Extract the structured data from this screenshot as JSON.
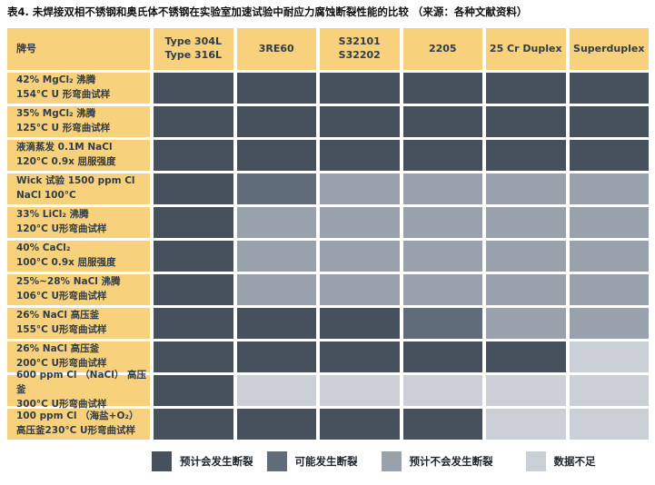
{
  "title": "表4. 未焊接双相不锈钢和奥氏体不锈钢在实验室加速试验中耐应力腐蚀断裂性能的比较 （来源：各种文献资料）",
  "colors": {
    "header_bg": "#F8D17C",
    "label_bg": "#F8D17C",
    "s1": "#47515E",
    "s2": "#606C7A",
    "s3": "#98A1AC",
    "s4": "#CBD0D7",
    "header_text": "#303C48",
    "title_text": "#111111"
  },
  "table": {
    "grade_header": "牌号",
    "columns": [
      "Type 304L\nType 316L",
      "3RE60",
      "S32101\nS32202",
      "2205",
      "25 Cr Duplex",
      "Superduplex"
    ],
    "rows": [
      {
        "label": "42% MgCl₂ 沸腾\n154°C U 形弯曲试样",
        "cells": [
          1,
          1,
          1,
          1,
          1,
          1
        ]
      },
      {
        "label": "35% MgCl₂ 沸腾\n125°C U 形弯曲试样",
        "cells": [
          1,
          1,
          1,
          1,
          1,
          1
        ]
      },
      {
        "label": "液滴蒸发  0.1M NaCl\n120°C 0.9x 屈服强度",
        "cells": [
          1,
          1,
          1,
          1,
          1,
          1
        ]
      },
      {
        "label": "Wick 试验 1500 ppm Cl\nNaCl 100°C",
        "cells": [
          1,
          2,
          3,
          3,
          3,
          3
        ]
      },
      {
        "label": "33% LiCl₂ 沸腾\n120°C U形弯曲试样",
        "cells": [
          1,
          3,
          3,
          3,
          3,
          3
        ]
      },
      {
        "label": "40% CaCl₂\n100°C 0.9x 屈服强度",
        "cells": [
          1,
          3,
          3,
          3,
          3,
          3
        ]
      },
      {
        "label": "25%~28% NaCl 沸腾\n106°C U形弯曲试样",
        "cells": [
          1,
          3,
          3,
          3,
          3,
          3
        ]
      },
      {
        "label": "26% NaCl 高压釜\n155°C U形弯曲试样",
        "cells": [
          1,
          1,
          1,
          2,
          3,
          3
        ]
      },
      {
        "label": "26% NaCl 高压釜\n200°C U形弯曲试样",
        "cells": [
          1,
          1,
          1,
          1,
          1,
          4
        ]
      },
      {
        "label": "600 ppm Cl （NaCl） 高压釜\n300°C U形弯曲试样",
        "cells": [
          1,
          4,
          4,
          4,
          4,
          4
        ]
      },
      {
        "label": "100 ppm Cl （海盐+O₂）\n高压釜230°C U形弯曲试样",
        "cells": [
          1,
          1,
          1,
          1,
          4,
          4
        ]
      }
    ]
  },
  "legend": [
    {
      "code": 1,
      "label": "预计会发生断裂"
    },
    {
      "code": 2,
      "label": "可能发生断裂"
    },
    {
      "code": 3,
      "label": "预计不会发生断裂"
    },
    {
      "code": 4,
      "label": "数据不足"
    }
  ],
  "chart_data": {
    "type": "heatmap",
    "title": "表4. 未焊接双相不锈钢和奥氏体不锈钢在实验室加速试验中耐应力腐蚀断裂性能的比较 （来源：各种文献资料）",
    "columns": [
      "Type 304L / Type 316L",
      "3RE60",
      "S32101 / S32202",
      "2205",
      "25 Cr Duplex",
      "Superduplex"
    ],
    "rows": [
      "42% MgCl₂ 沸腾 154°C U 形弯曲试样",
      "35% MgCl₂ 沸腾 125°C U 形弯曲试样",
      "液滴蒸发 0.1M NaCl 120°C 0.9x 屈服强度",
      "Wick 试验 1500 ppm Cl NaCl 100°C",
      "33% LiCl₂ 沸腾 120°C U形弯曲试样",
      "40% CaCl₂ 100°C 0.9x 屈服强度",
      "25%~28% NaCl 沸腾 106°C U形弯曲试样",
      "26% NaCl 高压釜 155°C U形弯曲试样",
      "26% NaCl 高压釜 200°C U形弯曲试样",
      "600 ppm Cl （NaCl） 高压釜 300°C U形弯曲试样",
      "100 ppm Cl （海盐+O₂） 高压釜230°C U形弯曲试样"
    ],
    "value_key": {
      "1": "预计会发生断裂",
      "2": "可能发生断裂",
      "3": "预计不会发生断裂",
      "4": "数据不足"
    },
    "values": [
      [
        1,
        1,
        1,
        1,
        1,
        1
      ],
      [
        1,
        1,
        1,
        1,
        1,
        1
      ],
      [
        1,
        1,
        1,
        1,
        1,
        1
      ],
      [
        1,
        2,
        3,
        3,
        3,
        3
      ],
      [
        1,
        3,
        3,
        3,
        3,
        3
      ],
      [
        1,
        3,
        3,
        3,
        3,
        3
      ],
      [
        1,
        3,
        3,
        3,
        3,
        3
      ],
      [
        1,
        1,
        1,
        2,
        3,
        3
      ],
      [
        1,
        1,
        1,
        1,
        1,
        4
      ],
      [
        1,
        4,
        4,
        4,
        4,
        4
      ],
      [
        1,
        1,
        1,
        1,
        4,
        4
      ]
    ],
    "legend_position": "bottom"
  }
}
